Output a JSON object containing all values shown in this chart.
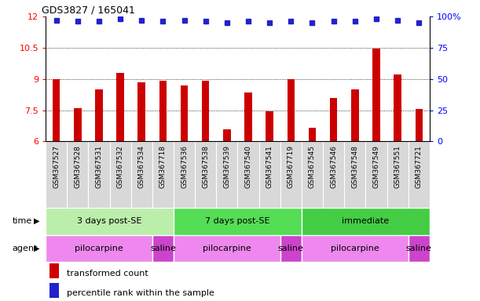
{
  "title": "GDS3827 / 165041",
  "samples": [
    "GSM367527",
    "GSM367528",
    "GSM367531",
    "GSM367532",
    "GSM367534",
    "GSM367718",
    "GSM367536",
    "GSM367538",
    "GSM367539",
    "GSM367540",
    "GSM367541",
    "GSM367719",
    "GSM367545",
    "GSM367546",
    "GSM367548",
    "GSM367549",
    "GSM367551",
    "GSM367721"
  ],
  "bar_values": [
    9.0,
    7.6,
    8.5,
    9.3,
    8.85,
    8.9,
    8.7,
    8.9,
    6.6,
    8.35,
    7.45,
    9.0,
    6.65,
    8.1,
    8.5,
    10.45,
    9.2,
    7.55
  ],
  "dot_values": [
    97,
    96,
    96,
    98,
    97,
    96,
    97,
    96,
    95,
    96,
    95,
    96,
    95,
    96,
    96,
    98,
    97,
    95
  ],
  "bar_color": "#cc0000",
  "dot_color": "#2222cc",
  "ylim_left": [
    6,
    12
  ],
  "ylim_right": [
    0,
    100
  ],
  "yticks_left": [
    6,
    7.5,
    9,
    10.5,
    12
  ],
  "yticks_right": [
    0,
    25,
    50,
    75,
    100
  ],
  "grid_lines": [
    7.5,
    9.0,
    10.5
  ],
  "time_groups": [
    {
      "label": "3 days post-SE",
      "start": 0,
      "end": 6,
      "color": "#bbeeaa"
    },
    {
      "label": "7 days post-SE",
      "start": 6,
      "end": 12,
      "color": "#55dd55"
    },
    {
      "label": "immediate",
      "start": 12,
      "end": 18,
      "color": "#44cc44"
    }
  ],
  "agent_groups": [
    {
      "label": "pilocarpine",
      "start": 0,
      "end": 5,
      "color": "#ee88ee"
    },
    {
      "label": "saline",
      "start": 5,
      "end": 6,
      "color": "#cc44cc"
    },
    {
      "label": "pilocarpine",
      "start": 6,
      "end": 11,
      "color": "#ee88ee"
    },
    {
      "label": "saline",
      "start": 11,
      "end": 12,
      "color": "#cc44cc"
    },
    {
      "label": "pilocarpine",
      "start": 12,
      "end": 17,
      "color": "#ee88ee"
    },
    {
      "label": "saline",
      "start": 17,
      "end": 18,
      "color": "#cc44cc"
    }
  ],
  "legend_bar_label": "transformed count",
  "legend_dot_label": "percentile rank within the sample",
  "time_label": "time",
  "agent_label": "agent",
  "xtick_bg": "#d8d8d8",
  "bar_width": 0.35
}
